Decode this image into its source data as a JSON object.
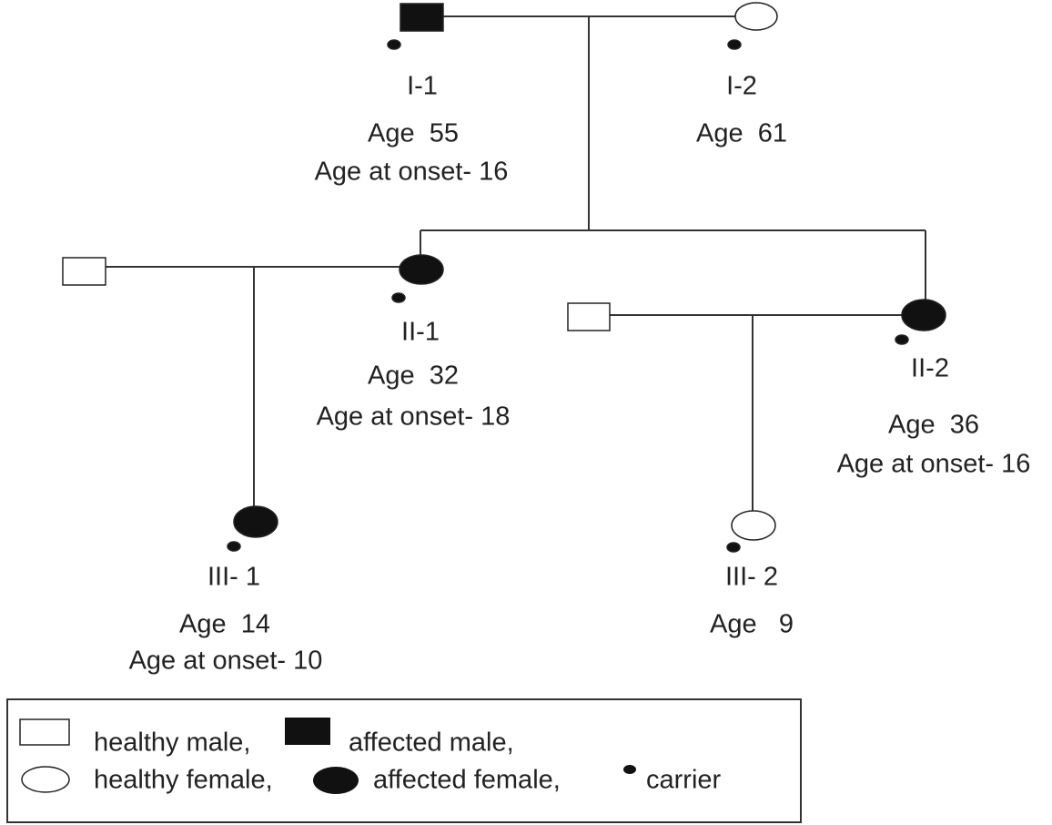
{
  "nodes": [
    {
      "id": "I-1",
      "lines": [
        "I-1",
        "Age  55",
        "Age at onset- 16"
      ]
    },
    {
      "id": "I-2",
      "lines": [
        "I-2",
        "Age  61"
      ]
    },
    {
      "id": "II-1",
      "lines": [
        "II-1",
        "Age  32",
        "Age at onset- 18"
      ]
    },
    {
      "id": "II-2",
      "lines": [
        "II-2",
        "Age  36",
        "Age at onset- 16"
      ]
    },
    {
      "id": "III-1",
      "lines": [
        "III- 1",
        "Age  14",
        "Age at onset- 10"
      ]
    },
    {
      "id": "III-2",
      "lines": [
        "III- 2",
        "Age   9"
      ]
    }
  ],
  "legend": {
    "items": [
      "healthy male,",
      "affected male,",
      "healthy female,",
      "affected female,",
      "carrier"
    ]
  }
}
